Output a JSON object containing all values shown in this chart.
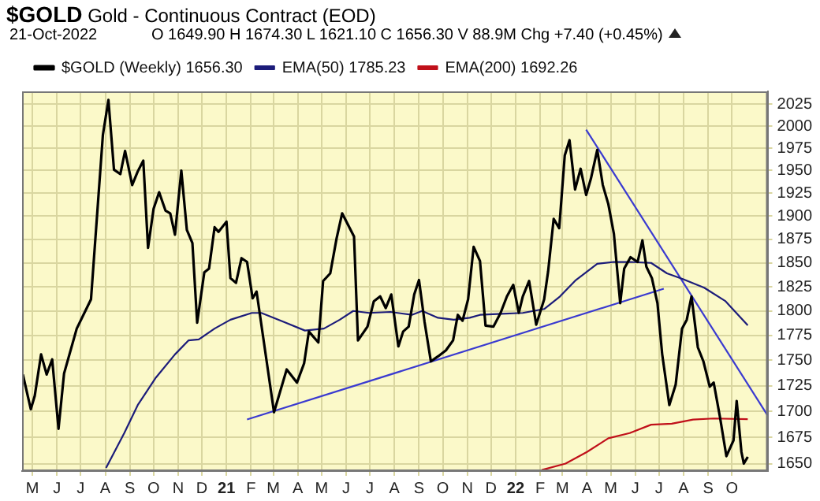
{
  "chart_data": {
    "type": "line",
    "title": "$GOLD",
    "subtitle": "Gold - Continuous Contract (EOD)",
    "annotations": [
      "21-Oct-2022",
      "O 1649.90 H 1674.30 L 1621.10 C 1656.30 V 88.9M Chg +7.40 (+0.45%)"
    ],
    "log": true,
    "grid": true,
    "legend": "top left",
    "marker": "none",
    "line_style": "solid",
    "xlim": [
      "2020-04-18",
      "2022-11-15"
    ],
    "xticks": [
      {
        "value": "2020-05",
        "label": "M"
      },
      {
        "value": "2020-06",
        "label": "J"
      },
      {
        "value": "2020-07",
        "label": "J"
      },
      {
        "value": "2020-08",
        "label": "A"
      },
      {
        "value": "2020-09",
        "label": "S"
      },
      {
        "value": "2020-10",
        "label": "O"
      },
      {
        "value": "2020-11",
        "label": "N"
      },
      {
        "value": "2020-12",
        "label": "D"
      },
      {
        "value": "2021-01",
        "label": "21"
      },
      {
        "value": "2021-02",
        "label": "F"
      },
      {
        "value": "2021-03",
        "label": "M"
      },
      {
        "value": "2021-04",
        "label": "A"
      },
      {
        "value": "2021-05",
        "label": "M"
      },
      {
        "value": "2021-06",
        "label": "J"
      },
      {
        "value": "2021-07",
        "label": "J"
      },
      {
        "value": "2021-08",
        "label": "A"
      },
      {
        "value": "2021-09",
        "label": "S"
      },
      {
        "value": "2021-10",
        "label": "O"
      },
      {
        "value": "2021-11",
        "label": "N"
      },
      {
        "value": "2021-12",
        "label": "D"
      },
      {
        "value": "2022-01",
        "label": "22"
      },
      {
        "value": "2022-02",
        "label": "F"
      },
      {
        "value": "2022-03",
        "label": "M"
      },
      {
        "value": "2022-04",
        "label": "A"
      },
      {
        "value": "2022-05",
        "label": "M"
      },
      {
        "value": "2022-06",
        "label": "J"
      },
      {
        "value": "2022-07",
        "label": "J"
      },
      {
        "value": "2022-08",
        "label": "A"
      },
      {
        "value": "2022-09",
        "label": "S"
      },
      {
        "value": "2022-10",
        "label": "O"
      }
    ],
    "ylim": [
      1643,
      2040
    ],
    "yticks": [
      1650,
      1675,
      1700,
      1725,
      1750,
      1775,
      1800,
      1825,
      1850,
      1875,
      1900,
      1925,
      1950,
      1975,
      2000,
      2025
    ],
    "series": [
      {
        "name": "$GOLD (Weekly) 1656.30",
        "color": "#000000",
        "x": [
          "2020-04-19",
          "2020-04-29",
          "2020-05-04",
          "2020-05-12",
          "2020-05-19",
          "2020-05-26",
          "2020-06-03",
          "2020-06-10",
          "2020-06-26",
          "2020-07-14",
          "2020-07-29",
          "2020-08-05",
          "2020-08-12",
          "2020-08-20",
          "2020-08-26",
          "2020-09-04",
          "2020-09-11",
          "2020-09-18",
          "2020-09-24",
          "2020-10-01",
          "2020-10-08",
          "2020-10-16",
          "2020-10-22",
          "2020-10-28",
          "2020-11-05",
          "2020-11-12",
          "2020-11-19",
          "2020-11-25",
          "2020-12-04",
          "2020-12-10",
          "2020-12-17",
          "2020-12-22",
          "2021-01-01",
          "2021-01-06",
          "2021-01-13",
          "2021-01-20",
          "2021-01-27",
          "2021-02-03",
          "2021-02-08",
          "2021-03-02",
          "2021-03-18",
          "2021-03-31",
          "2021-04-09",
          "2021-04-15",
          "2021-04-27",
          "2021-05-03",
          "2021-05-12",
          "2021-05-20",
          "2021-05-27",
          "2021-06-11",
          "2021-06-16",
          "2021-06-28",
          "2021-07-06",
          "2021-07-14",
          "2021-07-21",
          "2021-07-28",
          "2021-08-06",
          "2021-08-12",
          "2021-08-19",
          "2021-08-26",
          "2021-09-01",
          "2021-09-08",
          "2021-09-16",
          "2021-09-25",
          "2021-10-05",
          "2021-10-14",
          "2021-10-20",
          "2021-10-26",
          "2021-11-02",
          "2021-11-09",
          "2021-11-17",
          "2021-11-24",
          "2021-12-04",
          "2021-12-13",
          "2021-12-21",
          "2021-12-29",
          "2022-01-05",
          "2022-01-10",
          "2022-01-18",
          "2022-01-27",
          "2022-02-06",
          "2022-02-11",
          "2022-02-18",
          "2022-02-25",
          "2022-03-04",
          "2022-03-10",
          "2022-03-17",
          "2022-03-24",
          "2022-03-31",
          "2022-04-06",
          "2022-04-14",
          "2022-04-21",
          "2022-04-28",
          "2022-05-05",
          "2022-05-13",
          "2022-05-18",
          "2022-05-26",
          "2022-06-04",
          "2022-06-10",
          "2022-06-15",
          "2022-06-22",
          "2022-06-29",
          "2022-07-05",
          "2022-07-14",
          "2022-07-22",
          "2022-07-30",
          "2022-08-05",
          "2022-08-11",
          "2022-08-19",
          "2022-08-26",
          "2022-09-03",
          "2022-09-08",
          "2022-09-16",
          "2022-09-24",
          "2022-10-03",
          "2022-10-07",
          "2022-10-13",
          "2022-10-16",
          "2022-10-21"
        ],
        "values": [
          1736,
          1702,
          1715,
          1756,
          1736,
          1751,
          1683,
          1737,
          1782,
          1812,
          1990,
          2030,
          1951,
          1946,
          1972,
          1934,
          1949,
          1961,
          1866,
          1908,
          1926,
          1906,
          1903,
          1880,
          1950,
          1885,
          1871,
          1788,
          1840,
          1844,
          1888,
          1883,
          1894,
          1834,
          1829,
          1855,
          1851,
          1813,
          1820,
          1699,
          1741,
          1728,
          1747,
          1779,
          1768,
          1831,
          1839,
          1876,
          1903,
          1878,
          1770,
          1784,
          1810,
          1815,
          1803,
          1817,
          1764,
          1779,
          1784,
          1817,
          1832,
          1789,
          1749,
          1754,
          1760,
          1770,
          1796,
          1790,
          1812,
          1867,
          1852,
          1785,
          1784,
          1798,
          1815,
          1827,
          1798,
          1815,
          1831,
          1786,
          1812,
          1841,
          1897,
          1887,
          1967,
          1984,
          1929,
          1952,
          1923,
          1941,
          1973,
          1934,
          1913,
          1881,
          1808,
          1844,
          1856,
          1851,
          1874,
          1846,
          1834,
          1808,
          1756,
          1706,
          1726,
          1782,
          1791,
          1815,
          1763,
          1749,
          1724,
          1728,
          1694,
          1657,
          1672,
          1710,
          1661,
          1650,
          1656.3
        ]
      },
      {
        "name": "EMA(50) 1785.23",
        "color": "#1c1c7a",
        "x": [
          "2020-08-02",
          "2020-08-25",
          "2020-09-11",
          "2020-10-04",
          "2020-10-28",
          "2020-11-14",
          "2020-11-27",
          "2020-12-17",
          "2021-01-06",
          "2021-02-02",
          "2021-02-14",
          "2021-03-14",
          "2021-04-10",
          "2021-05-04",
          "2021-05-24",
          "2021-06-10",
          "2021-06-30",
          "2021-07-27",
          "2021-08-23",
          "2021-09-05",
          "2021-09-25",
          "2021-10-15",
          "2021-11-04",
          "2021-11-17",
          "2021-12-14",
          "2022-01-10",
          "2022-02-06",
          "2022-02-26",
          "2022-03-18",
          "2022-04-14",
          "2022-05-05",
          "2022-05-25",
          "2022-06-21",
          "2022-07-11",
          "2022-07-31",
          "2022-08-27",
          "2022-09-23",
          "2022-10-21"
        ],
        "values": [
          1646,
          1679,
          1706,
          1733,
          1756,
          1770,
          1771,
          1782,
          1791,
          1798,
          1798,
          1789,
          1780,
          1782,
          1791,
          1800,
          1798,
          1799,
          1796,
          1800,
          1793,
          1791,
          1793,
          1796,
          1797,
          1798,
          1802,
          1815,
          1832,
          1849,
          1851,
          1851,
          1850,
          1839,
          1833,
          1824,
          1810,
          1785.23
        ]
      },
      {
        "name": "EMA(200) 1692.26",
        "color": "#c0101a",
        "x": [
          "2022-02-03",
          "2022-03-05",
          "2022-04-01",
          "2022-04-28",
          "2022-05-25",
          "2022-06-21",
          "2022-07-17",
          "2022-08-13",
          "2022-09-08",
          "2022-10-21"
        ],
        "values": [
          1644,
          1650,
          1661,
          1674,
          1679,
          1687,
          1688,
          1692,
          1693,
          1692.26
        ]
      },
      {
        "type": "line",
        "color": "#3a3ad0",
        "x": [
          "2021-01-27",
          "2022-07-07"
        ],
        "values": [
          1692,
          1823
        ]
      },
      {
        "type": "line",
        "color": "#3a3ad0",
        "x": [
          "2022-03-31",
          "2022-11-15"
        ],
        "values": [
          1996,
          1696
        ]
      }
    ]
  }
}
